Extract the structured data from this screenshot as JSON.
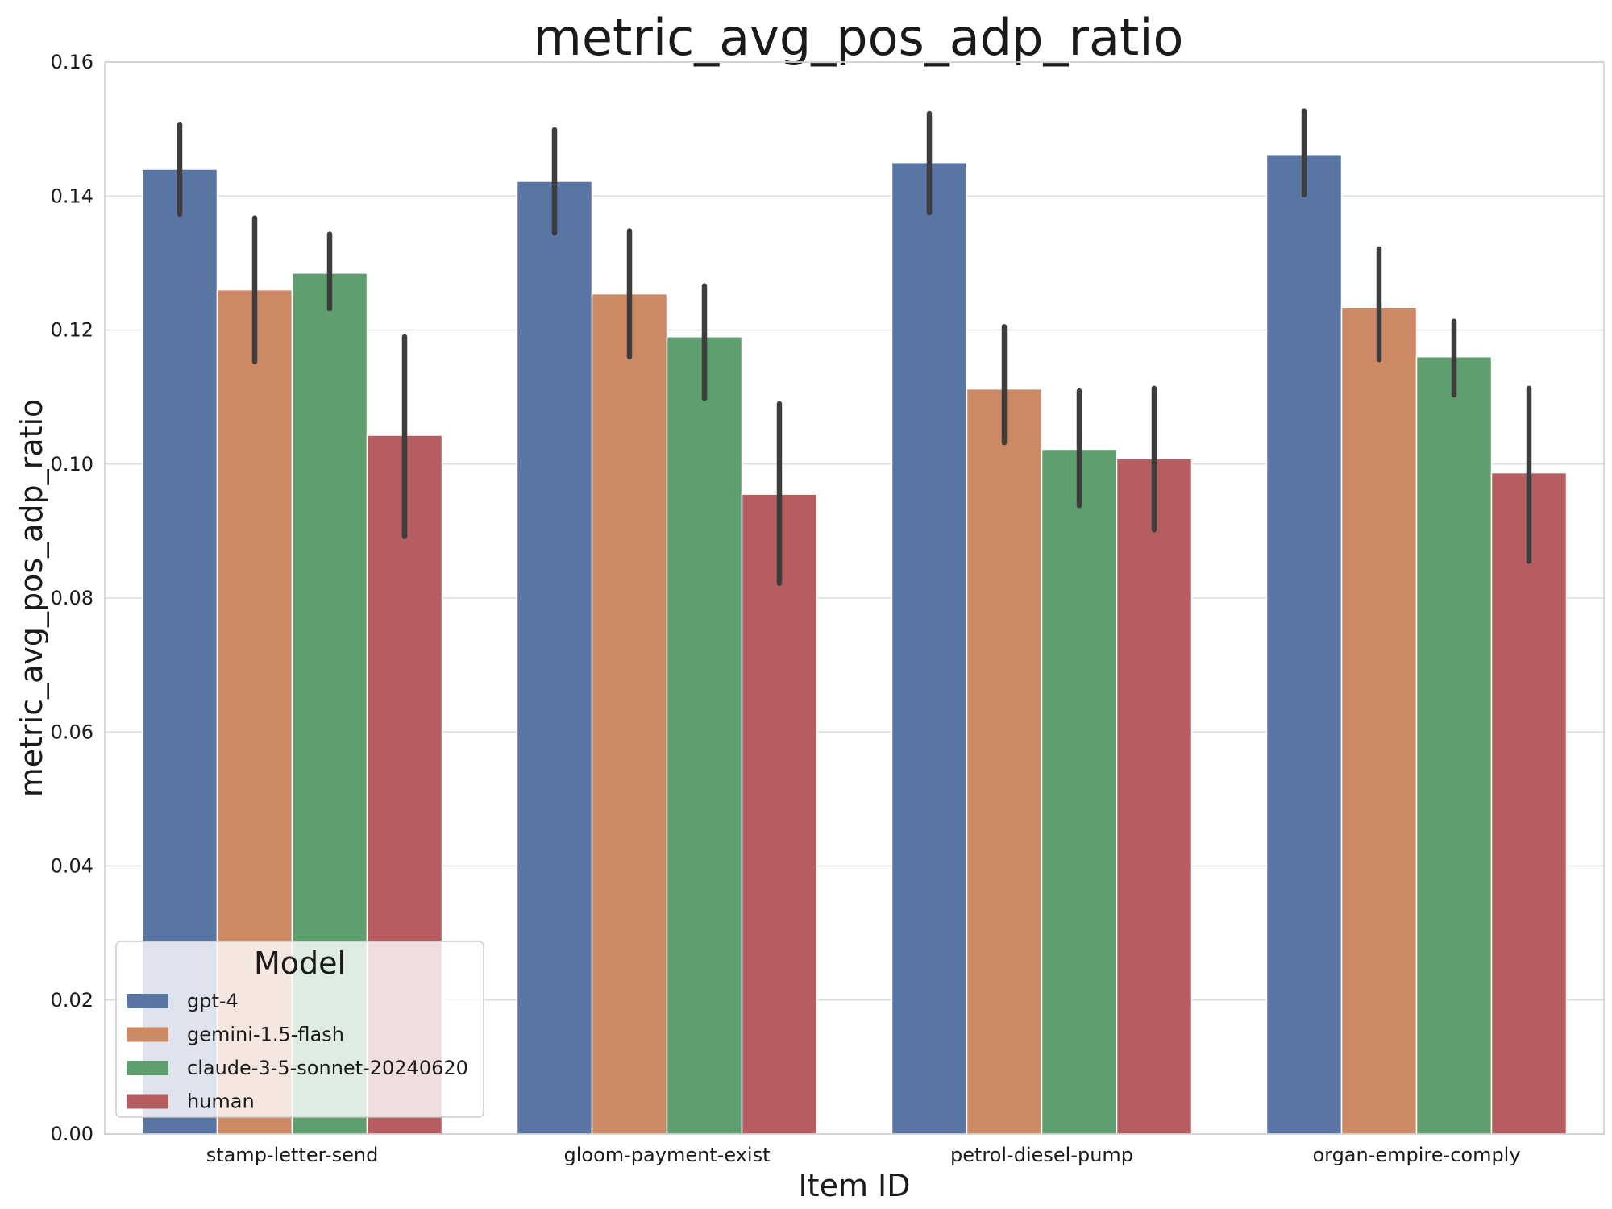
{
  "chart_data": {
    "type": "bar",
    "title": "metric_avg_pos_adp_ratio",
    "xlabel": "Item ID",
    "ylabel": "metric_avg_pos_adp_ratio",
    "ylim": [
      0,
      0.16
    ],
    "yticks": [
      "0.00",
      "0.02",
      "0.04",
      "0.06",
      "0.08",
      "0.10",
      "0.12",
      "0.14",
      "0.16"
    ],
    "grid": true,
    "legend": {
      "title": "Model",
      "placement": "lower-left"
    },
    "categories": [
      "stamp-letter-send",
      "gloom-payment-exist",
      "petrol-diesel-pump",
      "organ-empire-comply"
    ],
    "series": [
      {
        "name": "gpt-4",
        "color": "#5975a4",
        "values": [
          0.144,
          0.1422,
          0.145,
          0.1462
        ],
        "err_low": [
          0.1373,
          0.1345,
          0.1375,
          0.1402
        ],
        "err_high": [
          0.1507,
          0.1499,
          0.1523,
          0.1527
        ]
      },
      {
        "name": "gemini-1.5-flash",
        "color": "#cc8963",
        "values": [
          0.126,
          0.1254,
          0.1112,
          0.1234
        ],
        "err_low": [
          0.1153,
          0.116,
          0.1032,
          0.1156
        ],
        "err_high": [
          0.1367,
          0.1348,
          0.1205,
          0.1321
        ]
      },
      {
        "name": "claude-3-5-sonnet-20240620",
        "color": "#5f9e6e",
        "values": [
          0.1285,
          0.119,
          0.1022,
          0.116
        ],
        "err_low": [
          0.1232,
          0.1098,
          0.0938,
          0.1103
        ],
        "err_high": [
          0.1343,
          0.1266,
          0.1109,
          0.1213
        ]
      },
      {
        "name": "human",
        "color": "#b55d60",
        "values": [
          0.1043,
          0.0955,
          0.1008,
          0.0987
        ],
        "err_low": [
          0.0892,
          0.0822,
          0.0902,
          0.0855
        ],
        "err_high": [
          0.119,
          0.109,
          0.1113,
          0.1113
        ]
      }
    ]
  }
}
